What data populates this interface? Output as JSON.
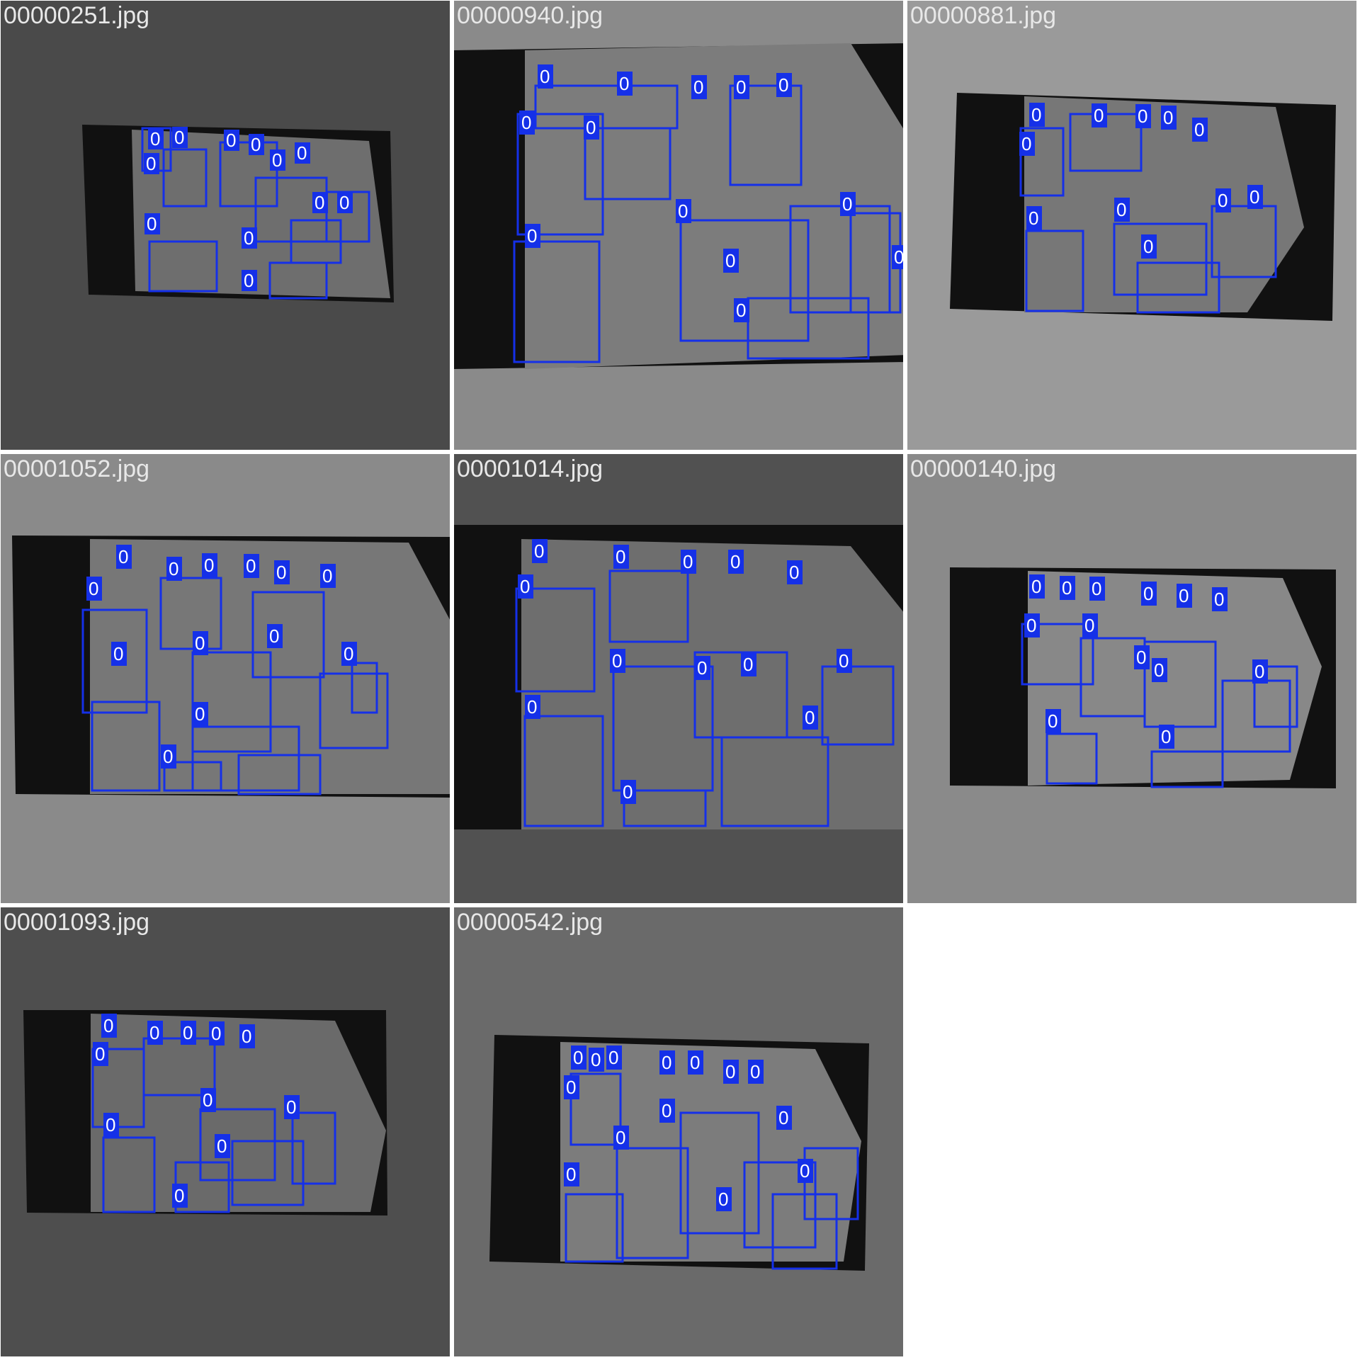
{
  "mosaic": {
    "background_color": "#ffffff",
    "box_color": "#1530e8",
    "class_label": "0",
    "tiles": [
      {
        "filename": "00000251.jpg",
        "background": "#4a4a4a"
      },
      {
        "filename": "00000940.jpg",
        "background": "#8a8a8a"
      },
      {
        "filename": "00000881.jpg",
        "background": "#9a9a9a"
      },
      {
        "filename": "00001052.jpg",
        "background": "#8a8a8a"
      },
      {
        "filename": "00001014.jpg",
        "background": "#515151"
      },
      {
        "filename": "00000140.jpg",
        "background": "#8a8a8a"
      },
      {
        "filename": "00001093.jpg",
        "background": "#4e4e4e"
      },
      {
        "filename": "00000542.jpg",
        "background": "#6a6a6a"
      }
    ]
  }
}
